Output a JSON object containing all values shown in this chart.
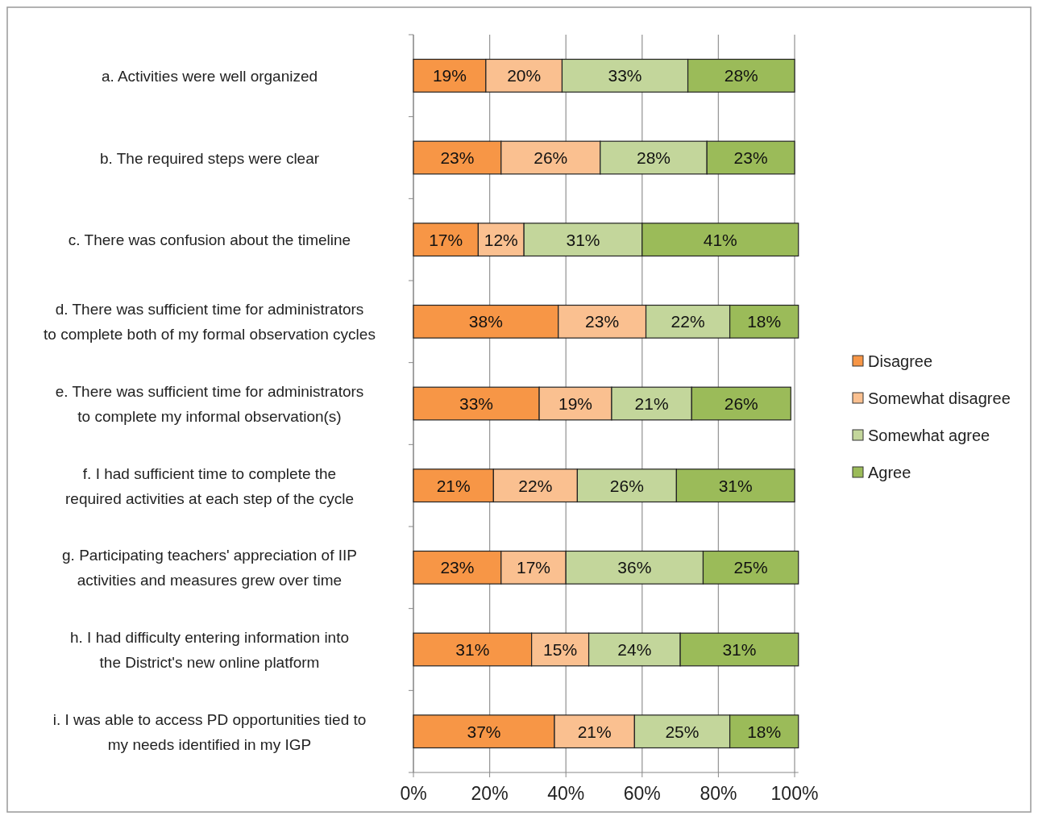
{
  "chart_data": {
    "type": "bar",
    "orientation": "horizontal",
    "stacked": true,
    "categories": [
      "a.  Activities were well organized",
      "b.  The required steps were clear",
      "c. There was confusion about the timeline",
      "d.  There was sufficient time for administrators to complete both of my formal observation cycles",
      "e.  There was sufficient time for administrators to complete my informal observation(s)",
      "f.  I had sufficient time to complete the required activities at each step of the cycle",
      "g. Participating teachers' appreciation of IIP activities and measures grew over time",
      "h. I had difficulty entering information into the District's new online platform",
      "i. I was able to access PD opportunities tied to my needs identified in my IGP"
    ],
    "series": [
      {
        "name": "Disagree",
        "color": "#f79646",
        "values": [
          19,
          23,
          17,
          38,
          33,
          21,
          23,
          31,
          37
        ],
        "value_labels": [
          "19%",
          "23%",
          "17%",
          "38%",
          "33%",
          "21%",
          "23%",
          "31%",
          "37%"
        ]
      },
      {
        "name": "Somewhat disagree",
        "color": "#fac090",
        "values": [
          20,
          26,
          12,
          23,
          19,
          22,
          17,
          15,
          21
        ],
        "value_labels": [
          "20%",
          "26%",
          "12%",
          "23%",
          "19%",
          "22%",
          "17%",
          "15%",
          "21%"
        ]
      },
      {
        "name": "Somewhat agree",
        "color": "#c3d69b",
        "values": [
          33,
          28,
          31,
          22,
          21,
          26,
          36,
          24,
          25
        ],
        "value_labels": [
          "33%",
          "28%",
          "31%",
          "22%",
          "21%",
          "26%",
          "36%",
          "24%",
          "25%"
        ]
      },
      {
        "name": "Agree",
        "color": "#9bbb59",
        "values": [
          28,
          23,
          41,
          18,
          26,
          31,
          25,
          31,
          18
        ],
        "value_labels": [
          "28%",
          "23%",
          "41%",
          "18%",
          "26%",
          "31%",
          "25%",
          "31%",
          "18%"
        ]
      }
    ],
    "xlim": [
      0,
      101
    ],
    "xticks": [
      {
        "value": 0,
        "label": "0%"
      },
      {
        "value": 20,
        "label": "20%"
      },
      {
        "value": 40,
        "label": "40%"
      },
      {
        "value": 60,
        "label": "60%"
      },
      {
        "value": 80,
        "label": "80%"
      },
      {
        "value": 100,
        "label": "100%"
      }
    ],
    "grid": "x",
    "legend": "right"
  }
}
